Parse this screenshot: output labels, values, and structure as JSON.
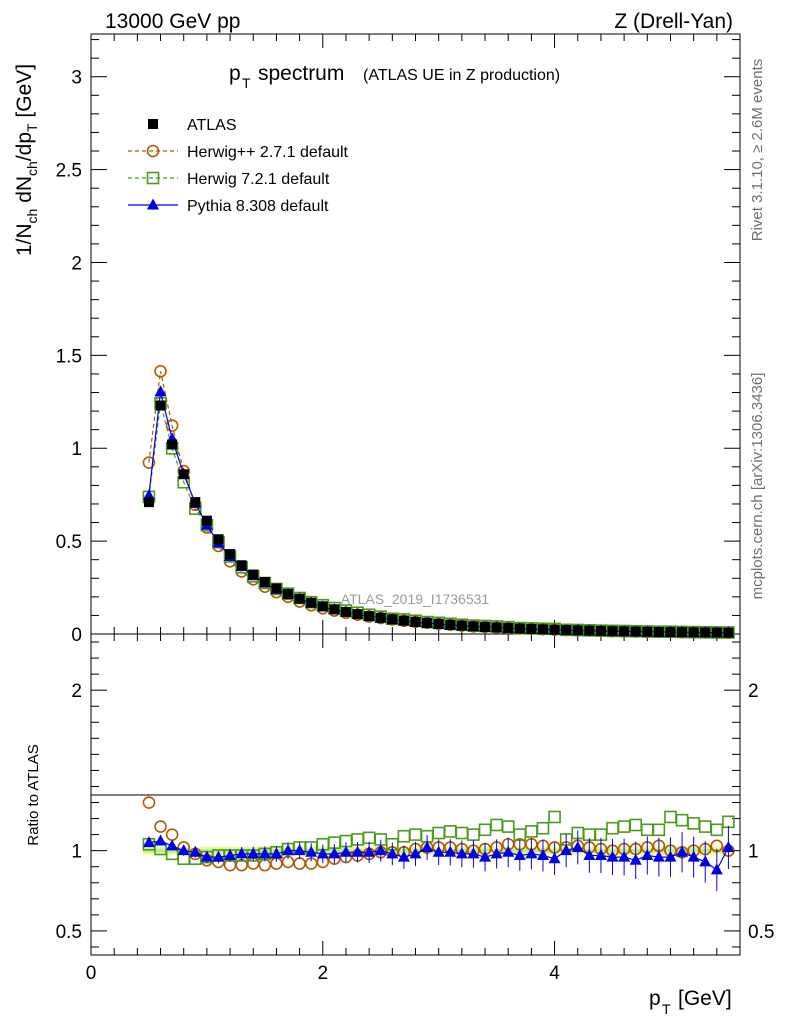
{
  "header": {
    "left": "13000 GeV pp",
    "right": "Z (Drell-Yan)"
  },
  "side_labels": {
    "rivet": "Rivet 3.1.10, ≥ 2.6M events",
    "mcplots": "mcplots.cern.ch [arXiv:1306.3436]"
  },
  "chart_data": {
    "type": "scatter",
    "title_main": "p",
    "title_sub": "T",
    "title_word": "spectrum",
    "title_paren": "(ATLAS UE in Z production)",
    "watermark": "ATLAS_2019_I1736531",
    "xlabel_main": "p",
    "xlabel_sub": "T",
    "xlabel_unit": "[GeV]",
    "ylabel_top": "1/N_ch dN_ch/dp_T [GeV]",
    "ylabel_bottom": "Ratio to ATLAS",
    "xlim": [
      0,
      5.6
    ],
    "ylim_top": [
      0,
      3.23
    ],
    "ylim_ratio": [
      0.35,
      2.35
    ],
    "x_ticks": [
      0,
      2,
      4
    ],
    "y_ticks_top": [
      0,
      0.5,
      1,
      1.5,
      2,
      2.5,
      3
    ],
    "y_ticks_ratio": [
      0.5,
      1,
      2
    ],
    "legend": [
      {
        "name": "ATLAS",
        "color": "#000000",
        "marker": "square-filled"
      },
      {
        "name": "Herwig++ 2.7.1 default",
        "color": "#b35900",
        "marker": "circle-open"
      },
      {
        "name": "Herwig 7.2.1 default",
        "color": "#4c9a1c",
        "marker": "square-open"
      },
      {
        "name": "Pythia 8.308 default",
        "color": "#0000e6",
        "marker": "triangle-filled"
      }
    ],
    "x": [
      0.5,
      0.6,
      0.7,
      0.8,
      0.9,
      1.0,
      1.1,
      1.2,
      1.3,
      1.4,
      1.5,
      1.6,
      1.7,
      1.8,
      1.9,
      2.0,
      2.1,
      2.2,
      2.3,
      2.4,
      2.5,
      2.6,
      2.7,
      2.8,
      2.9,
      3.0,
      3.1,
      3.2,
      3.3,
      3.4,
      3.5,
      3.6,
      3.7,
      3.8,
      3.9,
      4.0,
      4.1,
      4.2,
      4.3,
      4.4,
      4.5,
      4.6,
      4.7,
      4.8,
      4.9,
      5.0,
      5.1,
      5.2,
      5.3,
      5.4,
      5.5
    ],
    "atlas": [
      0.71,
      1.23,
      1.02,
      0.86,
      0.71,
      0.61,
      0.51,
      0.43,
      0.37,
      0.32,
      0.28,
      0.245,
      0.215,
      0.19,
      0.168,
      0.149,
      0.133,
      0.119,
      0.107,
      0.096,
      0.087,
      0.079,
      0.072,
      0.065,
      0.059,
      0.054,
      0.049,
      0.045,
      0.041,
      0.038,
      0.035,
      0.032,
      0.029,
      0.027,
      0.025,
      0.023,
      0.021,
      0.0195,
      0.018,
      0.0165,
      0.015,
      0.014,
      0.013,
      0.012,
      0.011,
      0.0102,
      0.0095,
      0.0088,
      0.0082,
      0.0076,
      0.007
    ],
    "series": [
      {
        "name": "Herwig++ 2.7.1 default",
        "ratio": [
          1.3,
          1.15,
          1.1,
          1.02,
          0.98,
          0.94,
          0.93,
          0.91,
          0.91,
          0.92,
          0.91,
          0.92,
          0.93,
          0.92,
          0.92,
          0.93,
          0.95,
          0.96,
          0.97,
          0.98,
          0.99,
          0.99,
          0.99,
          1.01,
          1.02,
          1.02,
          1.02,
          1.01,
          1.0,
          1.01,
          1.02,
          1.04,
          1.04,
          1.04,
          1.03,
          1.02,
          1.02,
          1.03,
          1.02,
          1.01,
          1.0,
          1.01,
          1.01,
          1.02,
          1.03,
          1.0,
          0.99,
          1.0,
          1.01,
          1.03,
          1.0
        ]
      },
      {
        "name": "Herwig 7.2.1 default",
        "ratio": [
          1.04,
          1.01,
          0.98,
          0.95,
          0.95,
          0.96,
          0.97,
          0.97,
          0.97,
          0.97,
          0.98,
          0.99,
          1.01,
          1.02,
          1.02,
          1.04,
          1.05,
          1.06,
          1.07,
          1.08,
          1.07,
          1.04,
          1.09,
          1.1,
          1.09,
          1.11,
          1.12,
          1.11,
          1.1,
          1.13,
          1.16,
          1.15,
          1.1,
          1.12,
          1.14,
          1.21,
          1.07,
          1.11,
          1.1,
          1.1,
          1.14,
          1.15,
          1.16,
          1.13,
          1.13,
          1.21,
          1.19,
          1.17,
          1.15,
          1.13,
          1.18
        ]
      },
      {
        "name": "Pythia 8.308 default",
        "ratio": [
          1.05,
          1.06,
          1.03,
          1.0,
          0.99,
          0.96,
          0.96,
          0.97,
          0.98,
          0.98,
          0.98,
          0.98,
          1.0,
          1.0,
          0.99,
          0.98,
          0.98,
          0.99,
          0.99,
          0.99,
          1.0,
          0.98,
          0.96,
          0.98,
          1.02,
          0.99,
          0.99,
          0.98,
          0.98,
          0.96,
          0.98,
          0.99,
          0.97,
          0.98,
          0.97,
          0.95,
          1.0,
          1.02,
          0.97,
          0.97,
          0.96,
          0.96,
          0.94,
          0.97,
          0.96,
          0.96,
          0.99,
          0.96,
          0.93,
          0.88,
          1.02
        ]
      }
    ]
  }
}
